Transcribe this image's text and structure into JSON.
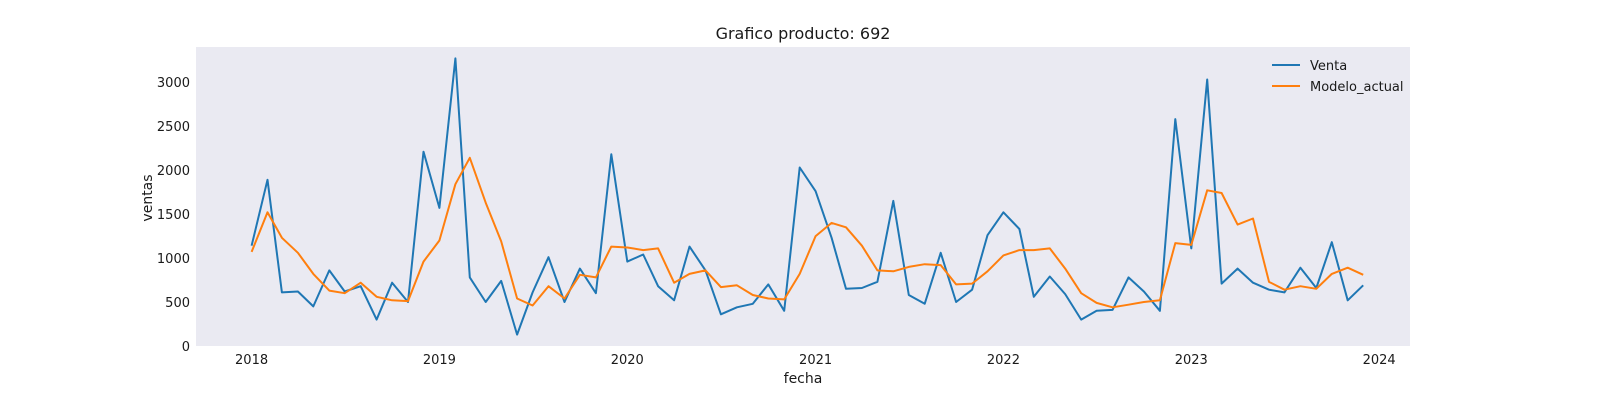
{
  "chart_data": {
    "type": "line",
    "title": "Grafico producto: 692",
    "xlabel": "fecha",
    "ylabel": "ventas",
    "x_ticks": [
      "2018",
      "2019",
      "2020",
      "2021",
      "2022",
      "2023",
      "2024"
    ],
    "y_ticks": [
      "0",
      "500",
      "1000",
      "1500",
      "2000",
      "2500",
      "3000"
    ],
    "ylim": [
      0,
      3400
    ],
    "xlim": [
      "2017-09-15",
      "2024-03-01"
    ],
    "x": [
      "2018-01",
      "2018-02",
      "2018-03",
      "2018-04",
      "2018-05",
      "2018-06",
      "2018-07",
      "2018-08",
      "2018-09",
      "2018-10",
      "2018-11",
      "2018-12",
      "2019-01",
      "2019-02",
      "2019-03",
      "2019-04",
      "2019-05",
      "2019-06",
      "2019-07",
      "2019-08",
      "2019-09",
      "2019-10",
      "2019-11",
      "2019-12",
      "2020-01",
      "2020-02",
      "2020-03",
      "2020-04",
      "2020-05",
      "2020-06",
      "2020-07",
      "2020-08",
      "2020-09",
      "2020-10",
      "2020-11",
      "2020-12",
      "2021-01",
      "2021-02",
      "2021-03",
      "2021-04",
      "2021-05",
      "2021-06",
      "2021-07",
      "2021-08",
      "2021-09",
      "2021-10",
      "2021-11",
      "2021-12",
      "2022-01",
      "2022-02",
      "2022-03",
      "2022-04",
      "2022-05",
      "2022-06",
      "2022-07",
      "2022-08",
      "2022-09",
      "2022-10",
      "2022-11",
      "2022-12",
      "2023-01",
      "2023-02",
      "2023-03",
      "2023-04",
      "2023-05",
      "2023-06",
      "2023-07",
      "2023-08",
      "2023-09",
      "2023-10",
      "2023-11",
      "2023-12"
    ],
    "series": [
      {
        "name": "Venta",
        "color": "#1f77b4",
        "values": [
          1140,
          1890,
          610,
          620,
          450,
          860,
          620,
          680,
          300,
          720,
          500,
          2210,
          1570,
          3270,
          780,
          500,
          740,
          130,
          610,
          1010,
          500,
          880,
          600,
          2180,
          960,
          1040,
          680,
          520,
          1130,
          860,
          360,
          440,
          480,
          700,
          400,
          2030,
          1760,
          1230,
          650,
          660,
          730,
          1650,
          580,
          480,
          1060,
          500,
          640,
          1260,
          1520,
          1330,
          560,
          790,
          590,
          300,
          400,
          410,
          780,
          620,
          400,
          2580,
          1110,
          3030,
          710,
          880,
          720,
          640,
          610,
          890,
          660,
          1180,
          520,
          690
        ]
      },
      {
        "name": "Modelo_actual",
        "color": "#ff7f0e",
        "values": [
          1070,
          1520,
          1230,
          1060,
          820,
          630,
          600,
          720,
          560,
          520,
          510,
          960,
          1200,
          1840,
          2140,
          1630,
          1190,
          540,
          460,
          680,
          540,
          810,
          780,
          1130,
          1120,
          1090,
          1110,
          720,
          820,
          860,
          670,
          690,
          580,
          540,
          530,
          820,
          1250,
          1400,
          1350,
          1140,
          860,
          850,
          900,
          930,
          920,
          700,
          710,
          850,
          1030,
          1090,
          1090,
          1110,
          880,
          600,
          490,
          440,
          470,
          500,
          520,
          1170,
          1150,
          1770,
          1740,
          1380,
          1450,
          730,
          640,
          680,
          650,
          820,
          890,
          810
        ]
      }
    ],
    "grid": false,
    "legend_position": "top-right",
    "background": "#eaeaf2"
  }
}
